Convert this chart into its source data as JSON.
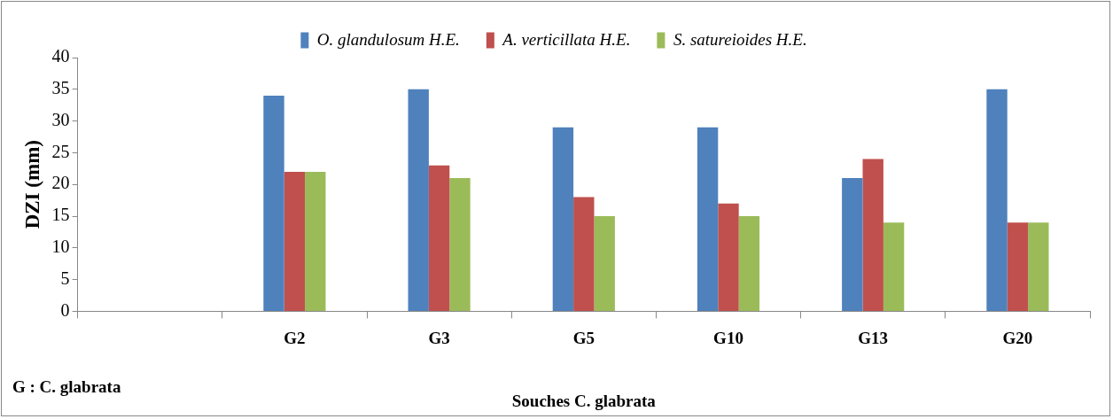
{
  "chart_data": {
    "type": "bar",
    "ylabel": "DZI (mm)",
    "xlabel": "Souches C. glabrata",
    "categories": [
      null,
      "G2",
      "G3",
      "G5",
      "G10",
      "G13",
      "G20"
    ],
    "series": [
      {
        "name": "O. glandulosum H.E.",
        "color": "#4f81bd",
        "values": [
          null,
          34,
          35,
          29,
          29,
          21,
          35
        ]
      },
      {
        "name": "A. verticillata H.E.",
        "color": "#c0504d",
        "values": [
          null,
          22,
          23,
          18,
          17,
          24,
          14
        ]
      },
      {
        "name": "S. satureioides H.E.",
        "color": "#9bbb59",
        "values": [
          null,
          22,
          21,
          15,
          15,
          14,
          14
        ]
      }
    ],
    "ylim": [
      0,
      40
    ],
    "yticks": [
      0,
      5,
      10,
      15,
      20,
      25,
      30,
      35,
      40
    ],
    "grid": false,
    "legend": "top",
    "annotations": [
      "G : C. glabrata"
    ]
  }
}
